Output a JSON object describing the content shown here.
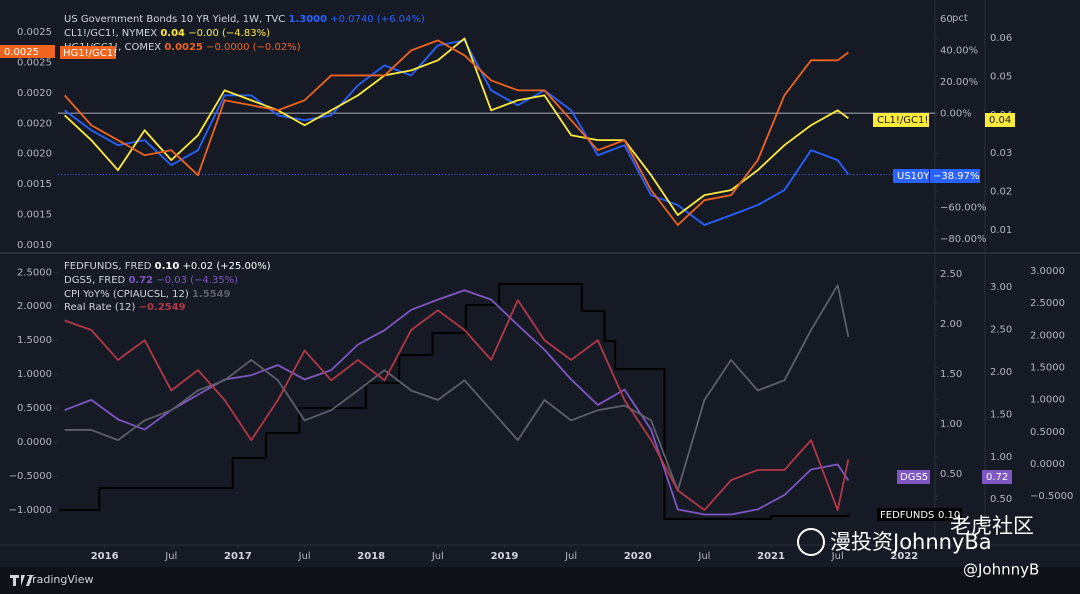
{
  "chart_data": [
    {
      "type": "line",
      "x": [
        2015.7,
        2015.9,
        2016.1,
        2016.3,
        2016.5,
        2016.7,
        2016.9,
        2017.1,
        2017.3,
        2017.5,
        2017.7,
        2017.9,
        2018.1,
        2018.3,
        2018.5,
        2018.7,
        2018.9,
        2019.1,
        2019.3,
        2019.5,
        2019.7,
        2019.9,
        2020.1,
        2020.3,
        2020.5,
        2020.7,
        2020.9,
        2021.1,
        2021.3,
        2021.5,
        2021.58
      ],
      "xlim": [
        2015.65,
        2022.23
      ],
      "ylim": [
        -87,
        67
      ],
      "yticks": [
        60,
        {
          "value": 40,
          "label": "40.00%"
        },
        {
          "value": 20,
          "label": "20.00%"
        },
        {
          "value": 0,
          "label": "0.00%"
        },
        {
          "value": -60,
          "label": "−60.00%"
        },
        {
          "value": -80,
          "label": "−80.00%"
        }
      ],
      "y_unit": "pct",
      "y2lim": [
        0.0048,
        0.0678
      ],
      "y2ticks": [
        0.06,
        0.05,
        0.04,
        0.03,
        0.02,
        0.01
      ],
      "left_labels": [
        "0.0025",
        "0.0025",
        "0.0020",
        "0.0020",
        "0.0020",
        "0.0015",
        "0.0015",
        "0.0010"
      ],
      "series": [
        {
          "name": "US Government Bonds 10 YR Yield, 1W, TVC",
          "last": "1.3000",
          "change": "+0.0740 (+6.04%)",
          "tag": "US10Y",
          "tag_value": "−38.97%",
          "color": "#2962ff",
          "values": [
            1.9,
            -10.8,
            -20.3,
            -17.1,
            -33.0,
            -23.5,
            11.4,
            11.4,
            -1.3,
            -4.4,
            -1.3,
            17.8,
            30.5,
            24.1,
            43.2,
            46.4,
            14.6,
            5.1,
            14.6,
            1.9,
            -26.7,
            -20.3,
            -52.1,
            -58.4,
            -71.1,
            -64.8,
            -58.4,
            -48.9,
            -23.5,
            -29.8,
            -39.0
          ]
        },
        {
          "name": "CL1!/GC1!, NYMEX",
          "last": "0.04",
          "change": "−0.00 (−4.83%)",
          "tag": "CL1!/GC1!",
          "color": "#ffeb3b",
          "values": [
            -1.3,
            -17.1,
            -36.2,
            -10.8,
            -29.8,
            -14.0,
            14.6,
            8.3,
            1.9,
            -7.6,
            1.9,
            11.4,
            24.1,
            27.3,
            33.7,
            47.6,
            1.9,
            8.3,
            11.4,
            -14.0,
            -17.1,
            -17.1,
            -39.4,
            -64.8,
            -52.1,
            -48.9,
            -36.2,
            -20.3,
            -7.6,
            1.9,
            -3.2
          ]
        },
        {
          "name": "HG1!/GC1!, COMEX",
          "last": "0.0025",
          "change": "−0.0000 (−0.02%)",
          "tag": "HG1!/GC1!",
          "color": "#f0641e",
          "values": [
            11.4,
            -7.6,
            -17.1,
            -26.7,
            -23.5,
            -39.4,
            8.3,
            5.1,
            1.9,
            8.3,
            24.1,
            24.1,
            24.1,
            40.0,
            46.4,
            36.8,
            20.9,
            14.6,
            14.6,
            -4.4,
            -23.5,
            -17.1,
            -48.9,
            -71.1,
            -55.3,
            -52.1,
            -29.8,
            11.4,
            33.7,
            33.7,
            38.7
          ]
        }
      ]
    },
    {
      "type": "line",
      "x": [
        2015.7,
        2015.9,
        2016.1,
        2016.3,
        2016.5,
        2016.7,
        2016.9,
        2017.1,
        2017.3,
        2017.5,
        2017.7,
        2017.9,
        2018.1,
        2018.3,
        2018.5,
        2018.7,
        2018.9,
        2019.1,
        2019.3,
        2019.5,
        2019.7,
        2019.9,
        2020.1,
        2020.3,
        2020.5,
        2020.7,
        2020.9,
        2021.1,
        2021.3,
        2021.5,
        2021.58
      ],
      "xlim": [
        2015.65,
        2022.23
      ],
      "xticks": [
        2016,
        {
          "value": 2016.5,
          "label": "Jul"
        },
        2017,
        {
          "value": 2017.5,
          "label": "Jul"
        },
        2018,
        {
          "value": 2018.5,
          "label": "Jul"
        },
        2019,
        {
          "value": 2019.5,
          "label": "Jul"
        },
        2020,
        {
          "value": 2020.5,
          "label": "Jul"
        },
        2021,
        {
          "value": 2021.5,
          "label": "Jul"
        },
        2022
      ],
      "ylim": [
        -1.44,
        2.71
      ],
      "yticks": [
        {
          "value": 2.5,
          "label": "2.5000"
        },
        {
          "value": 2,
          "label": "2.0000"
        },
        {
          "value": 1.5,
          "label": "1.5000"
        },
        {
          "value": 1,
          "label": "1.0000"
        },
        {
          "value": 0.5,
          "label": "0.5000"
        },
        {
          "value": 0,
          "label": "0.0000"
        },
        {
          "value": -0.5,
          "label": "−0.5000"
        },
        {
          "value": -1,
          "label": "−1.0000"
        }
      ],
      "y2lim": [
        -0.16,
        2.66
      ],
      "y2ticks": [
        {
          "value": 2.5,
          "label": "2.50"
        },
        {
          "value": 2,
          "label": "2.00"
        },
        {
          "value": 1.5,
          "label": "1.50"
        },
        {
          "value": 1,
          "label": "1.00"
        },
        {
          "value": 0.5,
          "label": "0.50"
        }
      ],
      "y3lim": [
        0.02,
        3.34
      ],
      "y3ticks": [
        {
          "value": 3,
          "label": "3.00"
        },
        {
          "value": 2.5,
          "label": "2.50"
        },
        {
          "value": 2,
          "label": "2.00"
        },
        {
          "value": 1.5,
          "label": "1.50"
        },
        {
          "value": 1,
          "label": "1.00"
        },
        {
          "value": 0.5,
          "label": "0.50"
        }
      ],
      "y4lim": [
        -1.18,
        3.2
      ],
      "y4ticks": [
        {
          "value": 3,
          "label": "3.0000"
        },
        {
          "value": 2.5,
          "label": "2.5000"
        },
        {
          "value": 2,
          "label": "2.0000"
        },
        {
          "value": 1.5,
          "label": "1.5000"
        },
        {
          "value": 1,
          "label": "1.0000"
        },
        {
          "value": 0.5,
          "label": "0.5000"
        },
        {
          "value": 0,
          "label": "0.0000"
        },
        {
          "value": -0.5,
          "label": "−0.5000"
        }
      ],
      "series": [
        {
          "name": "FEDFUNDS, FRED",
          "last": "0.10",
          "change": "+0.02 (+25.00%)",
          "tag": "FEDFUNDS",
          "color": "#000000",
          "axis": "y2",
          "step": true,
          "x": [
            2015.66,
            2015.96,
            2016.96,
            2017.21,
            2017.46,
            2017.96,
            2018.21,
            2018.46,
            2018.71,
            2018.96,
            2019.58,
            2019.75,
            2019.83,
            2020.2,
            2021.0,
            2021.58
          ],
          "values": [
            0.14,
            0.36,
            0.66,
            0.91,
            1.16,
            1.41,
            1.69,
            1.91,
            2.19,
            2.4,
            2.13,
            1.83,
            1.55,
            0.05,
            0.08,
            0.1
          ]
        },
        {
          "name": "DGS5, FRED",
          "last": "0.72",
          "change": "−0.03 (−4.35%)",
          "tag": "DGS5",
          "color": "#7e57c2",
          "axis": "y3",
          "values": [
            1.55,
            1.67,
            1.44,
            1.32,
            1.55,
            1.73,
            1.91,
            1.96,
            2.08,
            1.91,
            2.02,
            2.32,
            2.49,
            2.73,
            2.85,
            2.96,
            2.85,
            2.55,
            2.26,
            1.91,
            1.61,
            1.79,
            1.32,
            0.38,
            0.32,
            0.32,
            0.38,
            0.55,
            0.85,
            0.91,
            0.72
          ]
        },
        {
          "name": "CPI YoY% (CPIAUCSL, 12)",
          "last": "1.5549",
          "color": "#5d606b",
          "values": [
            0.18,
            0.18,
            0.03,
            0.32,
            0.47,
            0.76,
            0.91,
            1.21,
            0.91,
            0.32,
            0.47,
            0.76,
            1.06,
            0.76,
            0.62,
            0.91,
            0.47,
            0.03,
            0.62,
            0.32,
            0.47,
            0.54,
            0.32,
            -0.71,
            0.62,
            1.21,
            0.76,
            0.91,
            1.65,
            2.31,
            1.55
          ]
        },
        {
          "name": "Real Rate (12)",
          "last": "−0.2549",
          "color": "#b2384a",
          "values": [
            1.79,
            1.65,
            1.21,
            1.5,
            0.76,
            1.06,
            0.62,
            0.03,
            0.62,
            1.35,
            0.91,
            1.21,
            0.91,
            1.65,
            1.94,
            1.65,
            1.21,
            2.09,
            1.5,
            1.21,
            1.5,
            0.62,
            0.03,
            -0.71,
            -1.0,
            -0.56,
            -0.41,
            -0.41,
            0.03,
            -1.0,
            -0.25
          ]
        }
      ]
    }
  ],
  "footer": {
    "brand": "TradingView",
    "watermark": "漫投资JohnnyBa",
    "community": "老虎社区",
    "handle": "@JohnnyB"
  }
}
